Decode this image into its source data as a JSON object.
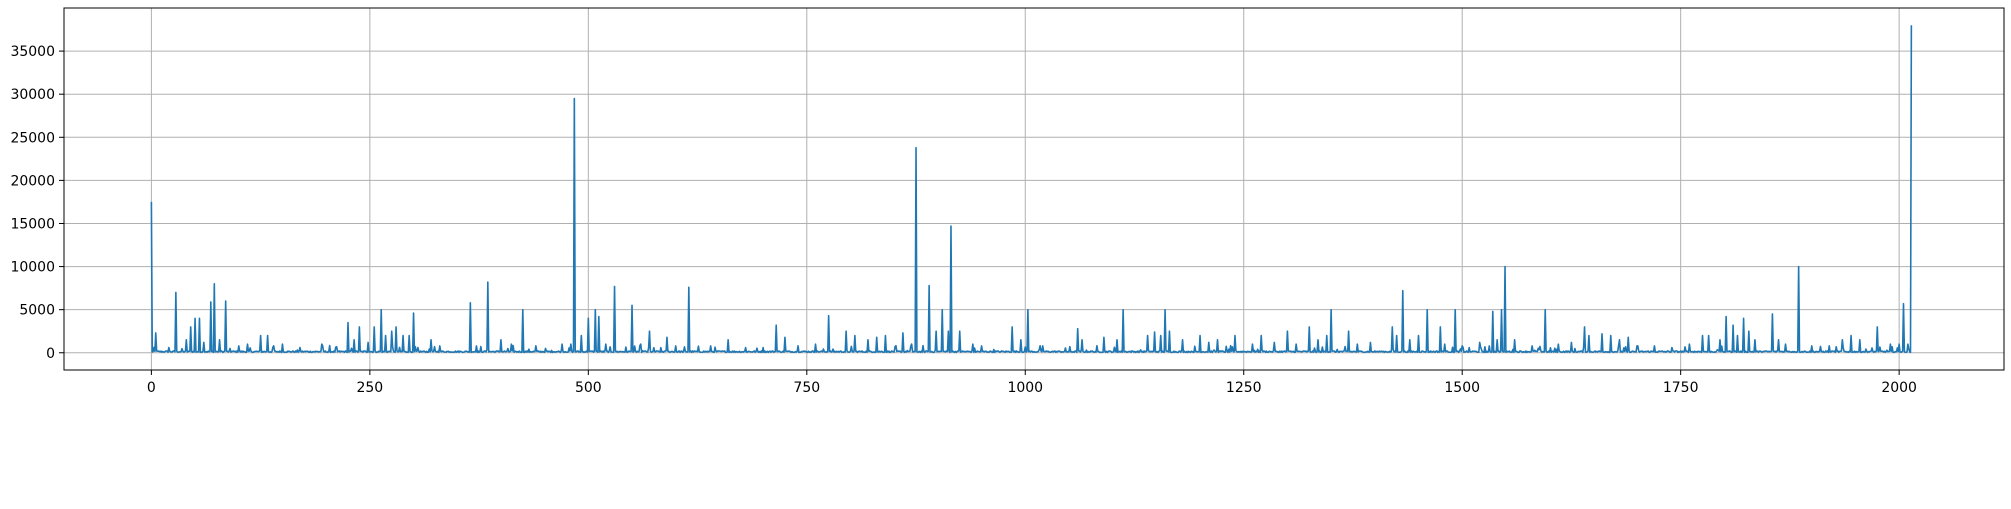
{
  "chart_data": {
    "type": "line",
    "title": "",
    "xlabel": "",
    "ylabel": "",
    "xlim": [
      -100,
      2120
    ],
    "ylim": [
      -2000,
      40000
    ],
    "grid": true,
    "x_ticks": [
      0,
      250,
      500,
      750,
      1000,
      1250,
      1500,
      1750,
      2000
    ],
    "x_tick_labels": [
      "0",
      "250",
      "500",
      "750",
      "1000",
      "1250",
      "1500",
      "1750",
      "2000"
    ],
    "y_ticks": [
      0,
      5000,
      10000,
      15000,
      20000,
      25000,
      30000,
      35000
    ],
    "y_tick_labels": [
      "0",
      "5000",
      "10000",
      "15000",
      "20000",
      "25000",
      "30000",
      "35000"
    ],
    "colors": {
      "line": "#1f77b4",
      "grid": "#b0b0b0",
      "axis": "#000000"
    },
    "series": [
      {
        "baseline": 150,
        "x_min": 0,
        "x_max": 2014,
        "spikes": [
          [
            0,
            17500
          ],
          [
            5,
            2300
          ],
          [
            20,
            600
          ],
          [
            28,
            7000
          ],
          [
            40,
            1500
          ],
          [
            45,
            3000
          ],
          [
            50,
            4000
          ],
          [
            55,
            4000
          ],
          [
            60,
            1200
          ],
          [
            68,
            5900
          ],
          [
            72,
            8000
          ],
          [
            78,
            1500
          ],
          [
            85,
            6000
          ],
          [
            100,
            800
          ],
          [
            110,
            1000
          ],
          [
            125,
            2000
          ],
          [
            133,
            2000
          ],
          [
            140,
            800
          ],
          [
            150,
            1000
          ],
          [
            170,
            600
          ],
          [
            195,
            1000
          ],
          [
            225,
            3500
          ],
          [
            232,
            1500
          ],
          [
            238,
            3000
          ],
          [
            248,
            1200
          ],
          [
            255,
            3000
          ],
          [
            263,
            5000
          ],
          [
            268,
            2000
          ],
          [
            275,
            2500
          ],
          [
            280,
            3000
          ],
          [
            288,
            2000
          ],
          [
            295,
            2000
          ],
          [
            300,
            4600
          ],
          [
            320,
            1500
          ],
          [
            330,
            800
          ],
          [
            365,
            5800
          ],
          [
            372,
            800
          ],
          [
            385,
            8200
          ],
          [
            400,
            1500
          ],
          [
            412,
            1000
          ],
          [
            425,
            5000
          ],
          [
            440,
            800
          ],
          [
            470,
            1000
          ],
          [
            480,
            1000
          ],
          [
            484,
            29500
          ],
          [
            492,
            2000
          ],
          [
            500,
            4000
          ],
          [
            508,
            5000
          ],
          [
            512,
            4200
          ],
          [
            520,
            1000
          ],
          [
            530,
            7700
          ],
          [
            550,
            5500
          ],
          [
            560,
            1000
          ],
          [
            570,
            2500
          ],
          [
            590,
            1800
          ],
          [
            600,
            800
          ],
          [
            615,
            7600
          ],
          [
            640,
            800
          ],
          [
            660,
            1500
          ],
          [
            680,
            600
          ],
          [
            700,
            600
          ],
          [
            715,
            3200
          ],
          [
            725,
            1800
          ],
          [
            740,
            800
          ],
          [
            760,
            1000
          ],
          [
            775,
            4300
          ],
          [
            795,
            2500
          ],
          [
            805,
            2000
          ],
          [
            820,
            1500
          ],
          [
            830,
            1800
          ],
          [
            840,
            2000
          ],
          [
            860,
            2300
          ],
          [
            870,
            1000
          ],
          [
            875,
            23800
          ],
          [
            890,
            7800
          ],
          [
            898,
            2500
          ],
          [
            905,
            5000
          ],
          [
            912,
            2500
          ],
          [
            915,
            14700
          ],
          [
            925,
            2500
          ],
          [
            940,
            1000
          ],
          [
            950,
            800
          ],
          [
            985,
            3000
          ],
          [
            995,
            1500
          ],
          [
            1003,
            5000
          ],
          [
            1020,
            800
          ],
          [
            1060,
            2800
          ],
          [
            1065,
            1500
          ],
          [
            1090,
            1800
          ],
          [
            1105,
            1500
          ],
          [
            1112,
            5000
          ],
          [
            1140,
            2000
          ],
          [
            1148,
            2400
          ],
          [
            1155,
            2000
          ],
          [
            1160,
            5000
          ],
          [
            1165,
            2500
          ],
          [
            1180,
            1500
          ],
          [
            1200,
            2000
          ],
          [
            1210,
            1200
          ],
          [
            1220,
            1500
          ],
          [
            1240,
            2000
          ],
          [
            1260,
            1000
          ],
          [
            1270,
            2000
          ],
          [
            1285,
            1200
          ],
          [
            1300,
            2500
          ],
          [
            1310,
            1000
          ],
          [
            1325,
            3000
          ],
          [
            1335,
            1500
          ],
          [
            1345,
            2000
          ],
          [
            1350,
            5000
          ],
          [
            1370,
            2500
          ],
          [
            1380,
            1000
          ],
          [
            1395,
            1200
          ],
          [
            1420,
            3000
          ],
          [
            1425,
            2000
          ],
          [
            1432,
            7200
          ],
          [
            1440,
            1500
          ],
          [
            1450,
            2000
          ],
          [
            1460,
            5000
          ],
          [
            1475,
            3000
          ],
          [
            1480,
            1000
          ],
          [
            1492,
            5000
          ],
          [
            1500,
            800
          ],
          [
            1520,
            1200
          ],
          [
            1535,
            4800
          ],
          [
            1540,
            1500
          ],
          [
            1545,
            5000
          ],
          [
            1549,
            10000
          ],
          [
            1560,
            1500
          ],
          [
            1580,
            800
          ],
          [
            1595,
            5000
          ],
          [
            1610,
            1000
          ],
          [
            1625,
            1200
          ],
          [
            1640,
            3000
          ],
          [
            1645,
            2000
          ],
          [
            1660,
            2200
          ],
          [
            1670,
            2000
          ],
          [
            1680,
            1500
          ],
          [
            1690,
            1800
          ],
          [
            1700,
            800
          ],
          [
            1720,
            800
          ],
          [
            1740,
            600
          ],
          [
            1760,
            1000
          ],
          [
            1775,
            2000
          ],
          [
            1782,
            2000
          ],
          [
            1795,
            1500
          ],
          [
            1802,
            4200
          ],
          [
            1810,
            3200
          ],
          [
            1815,
            2000
          ],
          [
            1822,
            4000
          ],
          [
            1828,
            2500
          ],
          [
            1835,
            1500
          ],
          [
            1855,
            4500
          ],
          [
            1862,
            1500
          ],
          [
            1870,
            1000
          ],
          [
            1885,
            10000
          ],
          [
            1900,
            800
          ],
          [
            1920,
            800
          ],
          [
            1935,
            1500
          ],
          [
            1945,
            2000
          ],
          [
            1955,
            1500
          ],
          [
            1975,
            3000
          ],
          [
            1990,
            1000
          ],
          [
            2000,
            1000
          ],
          [
            2005,
            5700
          ],
          [
            2010,
            1000
          ],
          [
            2014,
            38000
          ]
        ]
      }
    ]
  }
}
